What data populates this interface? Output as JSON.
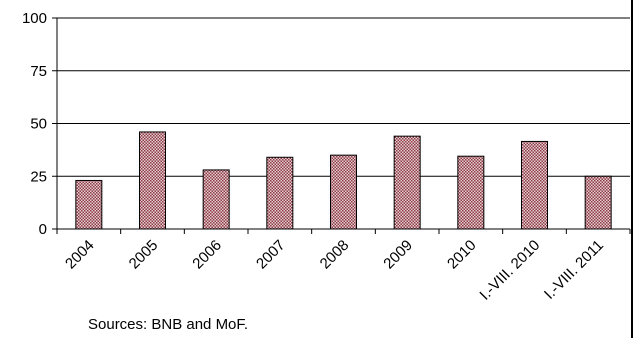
{
  "chart_data": {
    "type": "bar",
    "categories": [
      "2004",
      "2005",
      "2006",
      "2007",
      "2008",
      "2009",
      "2010",
      "I.-VIII. 2010",
      "I.-VIII. 2011"
    ],
    "values": [
      23,
      46,
      28,
      34,
      35,
      44,
      34.5,
      41.5,
      25
    ],
    "ylim": [
      0,
      100
    ],
    "yticks": [
      0,
      25,
      50,
      75,
      100
    ],
    "ytick_labels": [
      "0",
      "25",
      "50",
      "75",
      "100"
    ],
    "grid": true,
    "bar_color": "#b07a80",
    "bar_edge": "#000000"
  },
  "source_note": "Sources: BNB and MoF."
}
